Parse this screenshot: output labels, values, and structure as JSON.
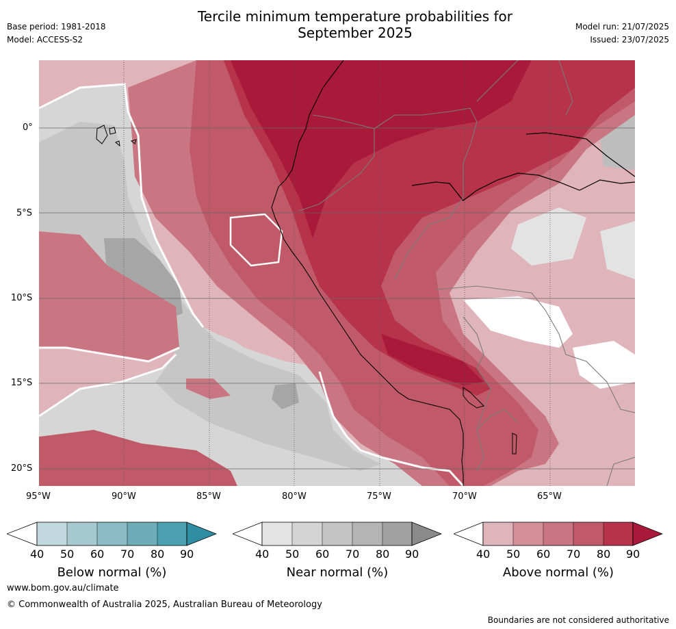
{
  "header": {
    "title_line1": "Tercile minimum temperature probabilities for",
    "title_line2": "September 2025",
    "base_period": "Base period: 1981-2018",
    "model": "Model: ACCESS-S2",
    "model_run": "Model run: 21/07/2025",
    "issued": "Issued: 23/07/2025"
  },
  "map": {
    "lat_labels": [
      "0°",
      "5°S",
      "10°S",
      "15°S",
      "20°S"
    ],
    "lon_labels": [
      "95°W",
      "90°W",
      "85°W",
      "80°W",
      "75°W",
      "70°W",
      "65°W"
    ]
  },
  "colorbars": [
    {
      "title": "Below normal (%)",
      "ticks": [
        "40",
        "50",
        "60",
        "70",
        "80",
        "90"
      ],
      "colors": [
        "#c0d8de",
        "#a6c9d0",
        "#8bbbc5",
        "#6eacb8",
        "#4aa0b0",
        "#2f8ea4"
      ]
    },
    {
      "title": "Near normal (%)",
      "ticks": [
        "40",
        "50",
        "60",
        "70",
        "80",
        "90"
      ],
      "colors": [
        "#e3e3e3",
        "#d4d4d4",
        "#c4c4c4",
        "#b4b4b4",
        "#a2a2a2",
        "#8a8a8a"
      ]
    },
    {
      "title": "Above normal (%)",
      "ticks": [
        "40",
        "50",
        "60",
        "70",
        "80",
        "90"
      ],
      "colors": [
        "#dfb4ba",
        "#d38f97",
        "#c97682",
        "#c05a68",
        "#b63349",
        "#a8193a"
      ]
    }
  ],
  "footer": {
    "url": "www.bom.gov.au/climate",
    "copyright": "© Commonwealth of Australia 2025, Australian Bureau of Meteorology",
    "disclaimer": "Boundaries are not considered authoritative"
  }
}
